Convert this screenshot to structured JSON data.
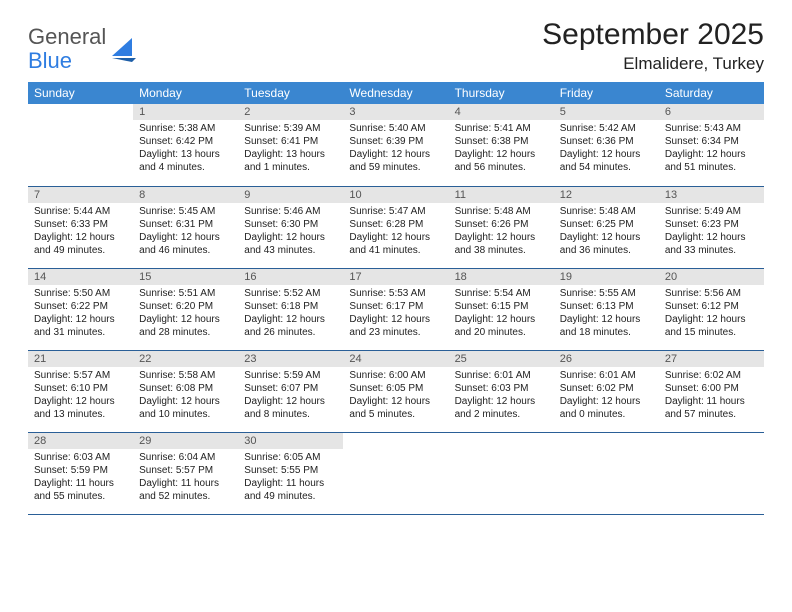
{
  "logo": {
    "line1": "General",
    "line2": "Blue"
  },
  "title": "September 2025",
  "location": "Elmalidere, Turkey",
  "weekdays": [
    "Sunday",
    "Monday",
    "Tuesday",
    "Wednesday",
    "Thursday",
    "Friday",
    "Saturday"
  ],
  "colors": {
    "header_bg": "#3a86d0",
    "header_text": "#ffffff",
    "daynum_bg": "#e5e5e5",
    "rule": "#2a5f97",
    "logo_blue": "#2f7de1"
  },
  "weeks": [
    [
      null,
      {
        "n": "1",
        "sr": "5:38 AM",
        "ss": "6:42 PM",
        "dl": "13 hours and 4 minutes."
      },
      {
        "n": "2",
        "sr": "5:39 AM",
        "ss": "6:41 PM",
        "dl": "13 hours and 1 minutes."
      },
      {
        "n": "3",
        "sr": "5:40 AM",
        "ss": "6:39 PM",
        "dl": "12 hours and 59 minutes."
      },
      {
        "n": "4",
        "sr": "5:41 AM",
        "ss": "6:38 PM",
        "dl": "12 hours and 56 minutes."
      },
      {
        "n": "5",
        "sr": "5:42 AM",
        "ss": "6:36 PM",
        "dl": "12 hours and 54 minutes."
      },
      {
        "n": "6",
        "sr": "5:43 AM",
        "ss": "6:34 PM",
        "dl": "12 hours and 51 minutes."
      }
    ],
    [
      {
        "n": "7",
        "sr": "5:44 AM",
        "ss": "6:33 PM",
        "dl": "12 hours and 49 minutes."
      },
      {
        "n": "8",
        "sr": "5:45 AM",
        "ss": "6:31 PM",
        "dl": "12 hours and 46 minutes."
      },
      {
        "n": "9",
        "sr": "5:46 AM",
        "ss": "6:30 PM",
        "dl": "12 hours and 43 minutes."
      },
      {
        "n": "10",
        "sr": "5:47 AM",
        "ss": "6:28 PM",
        "dl": "12 hours and 41 minutes."
      },
      {
        "n": "11",
        "sr": "5:48 AM",
        "ss": "6:26 PM",
        "dl": "12 hours and 38 minutes."
      },
      {
        "n": "12",
        "sr": "5:48 AM",
        "ss": "6:25 PM",
        "dl": "12 hours and 36 minutes."
      },
      {
        "n": "13",
        "sr": "5:49 AM",
        "ss": "6:23 PM",
        "dl": "12 hours and 33 minutes."
      }
    ],
    [
      {
        "n": "14",
        "sr": "5:50 AM",
        "ss": "6:22 PM",
        "dl": "12 hours and 31 minutes."
      },
      {
        "n": "15",
        "sr": "5:51 AM",
        "ss": "6:20 PM",
        "dl": "12 hours and 28 minutes."
      },
      {
        "n": "16",
        "sr": "5:52 AM",
        "ss": "6:18 PM",
        "dl": "12 hours and 26 minutes."
      },
      {
        "n": "17",
        "sr": "5:53 AM",
        "ss": "6:17 PM",
        "dl": "12 hours and 23 minutes."
      },
      {
        "n": "18",
        "sr": "5:54 AM",
        "ss": "6:15 PM",
        "dl": "12 hours and 20 minutes."
      },
      {
        "n": "19",
        "sr": "5:55 AM",
        "ss": "6:13 PM",
        "dl": "12 hours and 18 minutes."
      },
      {
        "n": "20",
        "sr": "5:56 AM",
        "ss": "6:12 PM",
        "dl": "12 hours and 15 minutes."
      }
    ],
    [
      {
        "n": "21",
        "sr": "5:57 AM",
        "ss": "6:10 PM",
        "dl": "12 hours and 13 minutes."
      },
      {
        "n": "22",
        "sr": "5:58 AM",
        "ss": "6:08 PM",
        "dl": "12 hours and 10 minutes."
      },
      {
        "n": "23",
        "sr": "5:59 AM",
        "ss": "6:07 PM",
        "dl": "12 hours and 8 minutes."
      },
      {
        "n": "24",
        "sr": "6:00 AM",
        "ss": "6:05 PM",
        "dl": "12 hours and 5 minutes."
      },
      {
        "n": "25",
        "sr": "6:01 AM",
        "ss": "6:03 PM",
        "dl": "12 hours and 2 minutes."
      },
      {
        "n": "26",
        "sr": "6:01 AM",
        "ss": "6:02 PM",
        "dl": "12 hours and 0 minutes."
      },
      {
        "n": "27",
        "sr": "6:02 AM",
        "ss": "6:00 PM",
        "dl": "11 hours and 57 minutes."
      }
    ],
    [
      {
        "n": "28",
        "sr": "6:03 AM",
        "ss": "5:59 PM",
        "dl": "11 hours and 55 minutes."
      },
      {
        "n": "29",
        "sr": "6:04 AM",
        "ss": "5:57 PM",
        "dl": "11 hours and 52 minutes."
      },
      {
        "n": "30",
        "sr": "6:05 AM",
        "ss": "5:55 PM",
        "dl": "11 hours and 49 minutes."
      },
      null,
      null,
      null,
      null
    ]
  ],
  "labels": {
    "sunrise": "Sunrise:",
    "sunset": "Sunset:",
    "daylight": "Daylight:"
  }
}
